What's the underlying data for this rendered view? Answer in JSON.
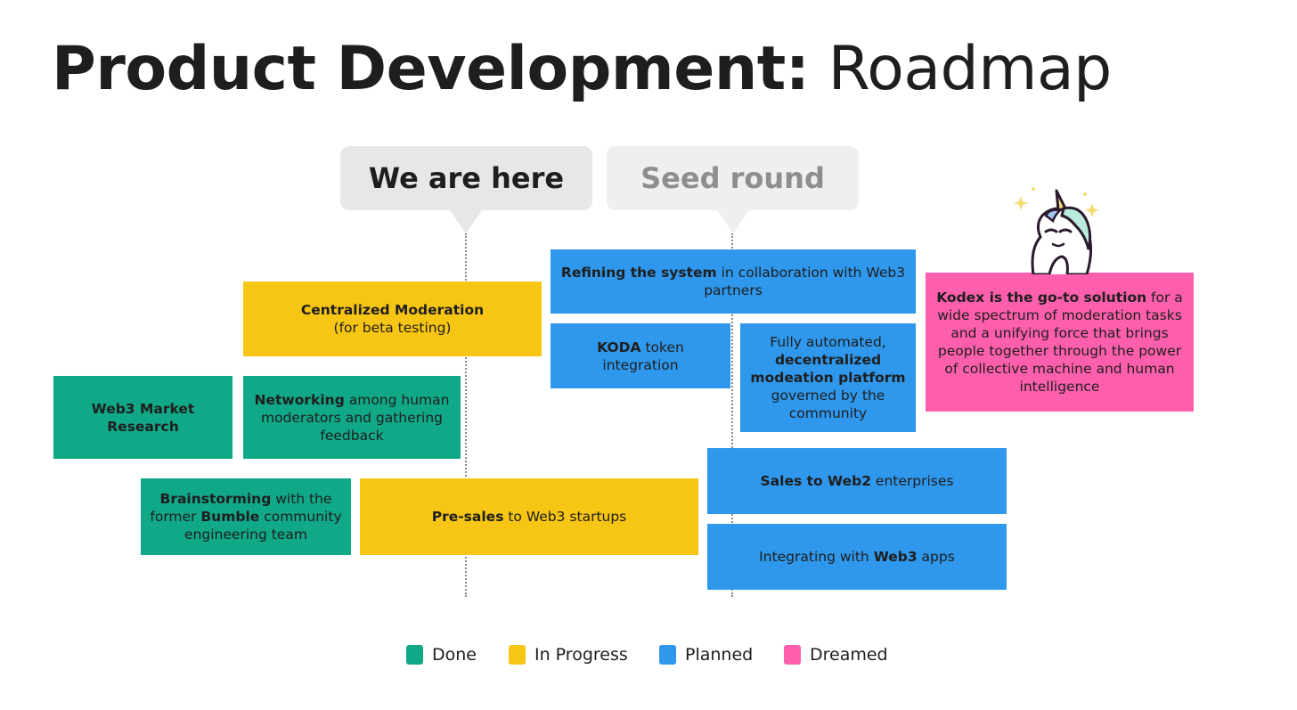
{
  "title": {
    "bold": "Product Development:",
    "light": "Roadmap"
  },
  "markers": {
    "here": "We are here",
    "seed": "Seed round"
  },
  "cards": {
    "centralized": {
      "b": "Centralized Moderation",
      "rest": "(for beta testing)"
    },
    "market": {
      "b1": "Web3 Market",
      "b2": "Research"
    },
    "networking": {
      "b": "Networking",
      "rest": " among human moderators and gathering feedback"
    },
    "brainstorm": {
      "b1": "Brainstorming",
      "t1": " with the former ",
      "b2": "Bumble",
      "t2": " community engineering team"
    },
    "presales": {
      "b": "Pre-sales",
      "rest": " to Web3 startups"
    },
    "refining": {
      "b": "Refining the system",
      "rest": " in collaboration with Web3 partners"
    },
    "koda": {
      "b": "KODA",
      "rest": " token integration"
    },
    "automated": {
      "t1": "Fully automated, ",
      "b": "decentralized modeation platform",
      "t2": " governed by the community"
    },
    "sales": {
      "b": "Sales to Web2",
      "rest": " enterprises"
    },
    "integrating": {
      "t1": "Integrating with ",
      "b": "Web3",
      "t2": " apps"
    },
    "kodex": {
      "b": "Kodex is the go-to solution",
      "rest": " for a wide spectrum of moderation tasks and a unifying force that brings people together through the power of collective machine and human intelligence"
    }
  },
  "legend": [
    {
      "label": "Done",
      "color": "#10a887"
    },
    {
      "label": "In Progress",
      "color": "#f7c513"
    },
    {
      "label": "Planned",
      "color": "#2f98ec"
    },
    {
      "label": "Dreamed",
      "color": "#fd5fac"
    }
  ]
}
